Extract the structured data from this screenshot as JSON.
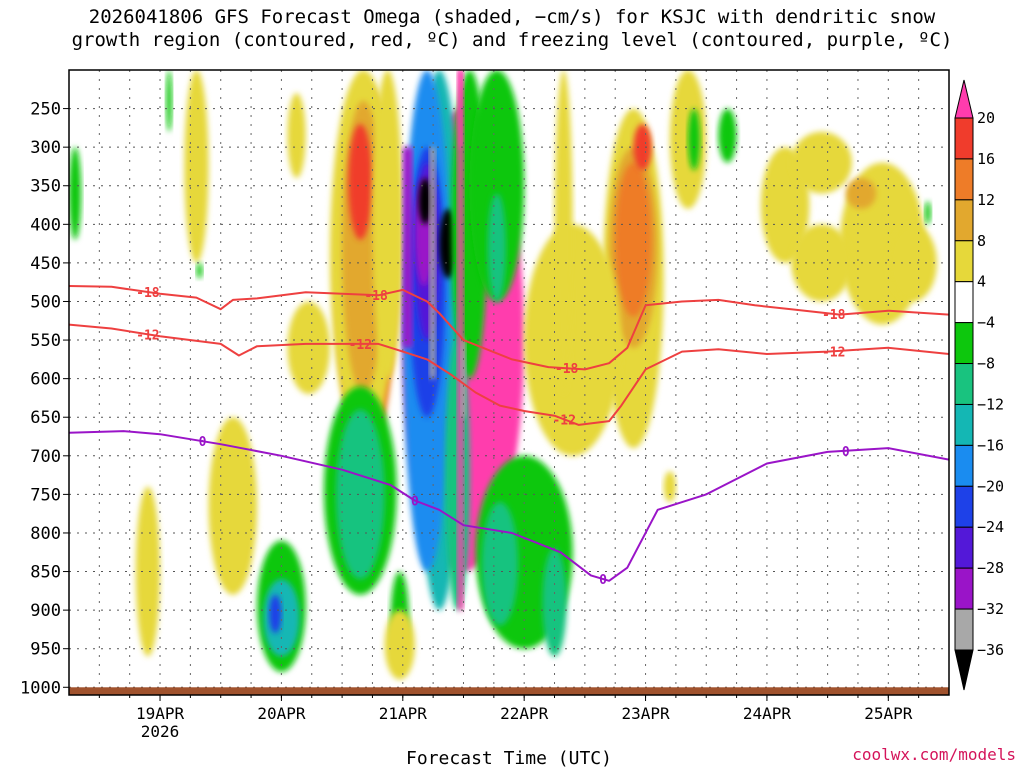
{
  "chart_data": {
    "type": "heatmap",
    "title_line1": "2026041806 GFS Forecast Omega (shaded, −cm/s) for KSJC with dendritic snow",
    "title_line2": "growth region (contoured, red, ºC) and freezing level (contoured, purple, ºC)",
    "xlabel": "Forecast Time (UTC)",
    "ylabel": "",
    "x_unit": "days since 2026-04-18 00Z",
    "xlim": [
      0.25,
      7.5
    ],
    "x_ticks": [
      {
        "x": 1,
        "label": "19APR",
        "sublabel": "2026"
      },
      {
        "x": 2,
        "label": "20APR",
        "sublabel": ""
      },
      {
        "x": 3,
        "label": "21APR",
        "sublabel": ""
      },
      {
        "x": 4,
        "label": "22APR",
        "sublabel": ""
      },
      {
        "x": 5,
        "label": "23APR",
        "sublabel": ""
      },
      {
        "x": 6,
        "label": "24APR",
        "sublabel": ""
      },
      {
        "x": 7,
        "label": "25APR",
        "sublabel": ""
      }
    ],
    "y_ticks": [
      250,
      300,
      350,
      400,
      450,
      500,
      550,
      600,
      650,
      700,
      750,
      800,
      850,
      900,
      950,
      1000
    ],
    "ylim_hPa": [
      200,
      1010
    ],
    "ground_level_hPa": 1000,
    "grid": true,
    "colorbar": {
      "levels": [
        "20",
        "16",
        "12",
        "8",
        "4",
        "−4",
        "−8",
        "−12",
        "−16",
        "−20",
        "−24",
        "−28",
        "−32",
        "−36"
      ],
      "colors": [
        "#ff3cad",
        "#f03c2c",
        "#ee7c28",
        "#e2a82e",
        "#e6d83a",
        "#ffffff",
        "#0dc70d",
        "#19c37f",
        "#14b7b4",
        "#1a8cf0",
        "#1e41e8",
        "#5318d8",
        "#9a14c8",
        "#a8a8a8",
        "#000000"
      ]
    },
    "series": [
      {
        "name": "-18",
        "color": "#ee4040",
        "x": [
          0.25,
          0.6,
          1.0,
          1.3,
          1.5,
          1.6,
          1.8,
          2.2,
          2.8,
          3.0,
          3.2,
          3.3,
          3.5,
          3.9,
          4.2,
          4.5,
          4.7,
          4.85,
          5.0,
          5.3,
          5.6,
          5.9,
          6.2,
          6.6,
          7.0,
          7.5
        ],
        "p": [
          480,
          481,
          490,
          495,
          510,
          498,
          496,
          488,
          492,
          485,
          500,
          515,
          550,
          575,
          585,
          588,
          580,
          560,
          505,
          500,
          498,
          505,
          510,
          517,
          512,
          517
        ],
        "labels": [
          {
            "x": 0.9,
            "text": "-18"
          },
          {
            "x": 2.78,
            "text": "-18"
          },
          {
            "x": 4.35,
            "text": "-18"
          },
          {
            "x": 6.55,
            "text": "-18"
          }
        ]
      },
      {
        "name": "-12",
        "color": "#ee4040",
        "x": [
          0.25,
          0.6,
          1.0,
          1.5,
          1.65,
          1.8,
          2.2,
          2.8,
          3.0,
          3.2,
          3.4,
          3.6,
          3.8,
          4.0,
          4.25,
          4.45,
          4.7,
          4.8,
          5.0,
          5.3,
          5.6,
          6.0,
          6.5,
          7.0,
          7.5
        ],
        "p": [
          530,
          535,
          545,
          555,
          570,
          558,
          555,
          555,
          565,
          575,
          595,
          618,
          635,
          642,
          648,
          660,
          655,
          635,
          588,
          565,
          562,
          568,
          565,
          560,
          568
        ],
        "labels": [
          {
            "x": 0.9,
            "text": "-12"
          },
          {
            "x": 2.65,
            "text": "-12"
          },
          {
            "x": 4.33,
            "text": "-12"
          },
          {
            "x": 6.55,
            "text": "-12"
          }
        ]
      },
      {
        "name": "0",
        "color": "#9a14c8",
        "x": [
          0.25,
          0.7,
          1.0,
          1.5,
          2.0,
          2.5,
          2.9,
          3.1,
          3.3,
          3.5,
          3.9,
          4.3,
          4.55,
          4.7,
          4.85,
          5.1,
          5.5,
          6.0,
          6.5,
          7.0,
          7.5
        ],
        "p": [
          670,
          668,
          672,
          685,
          700,
          718,
          738,
          758,
          770,
          790,
          800,
          825,
          855,
          862,
          845,
          770,
          750,
          710,
          695,
          690,
          705
        ],
        "labels": [
          {
            "x": 1.35,
            "text": "0"
          },
          {
            "x": 3.1,
            "text": "0"
          },
          {
            "x": 4.65,
            "text": "0"
          },
          {
            "x": 6.65,
            "text": "0"
          }
        ]
      }
    ]
  },
  "credit": "coolwx.com/models"
}
